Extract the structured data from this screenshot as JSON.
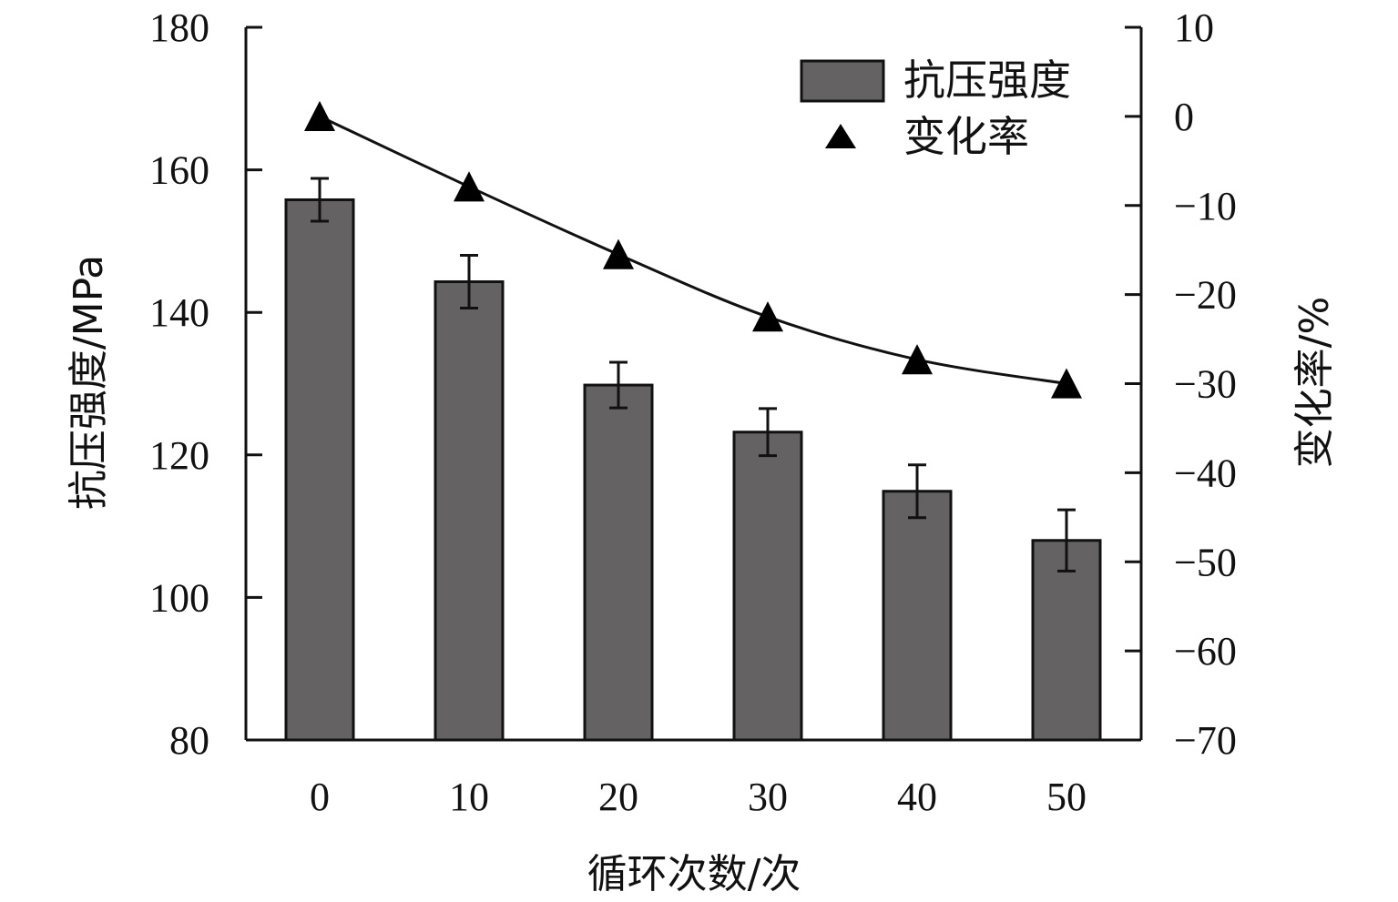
{
  "chart_data": {
    "type": "bar",
    "categories": [
      "0",
      "10",
      "20",
      "30",
      "40",
      "50"
    ],
    "series": [
      {
        "name": "抗压强度",
        "kind": "bar",
        "axis": "left",
        "values": [
          155.8,
          144.3,
          129.8,
          123.2,
          114.9,
          108.0
        ],
        "error": [
          3.0,
          3.7,
          3.2,
          3.3,
          3.7,
          4.3
        ]
      },
      {
        "name": "变化率",
        "kind": "scatter-with-trendline",
        "axis": "right",
        "values": [
          0.0,
          -7.9,
          -15.5,
          -22.5,
          -27.3,
          -30.0
        ]
      }
    ],
    "xlabel": "循环次数/次",
    "ylabel": "抗压强度/MPa",
    "y2label": "变化率/%",
    "ylim": [
      80,
      180
    ],
    "y2lim": [
      -70,
      10
    ],
    "yticks": [
      "80",
      "100",
      "120",
      "140",
      "160",
      "180"
    ],
    "y2ticks": [
      "−70",
      "−60",
      "−50",
      "−40",
      "−30",
      "−20",
      "−10",
      "0",
      "10"
    ],
    "legend_position": "top-right",
    "grid": false,
    "colors": {
      "bar": "#646263",
      "marker": "#000000",
      "axis": "#111111"
    }
  }
}
